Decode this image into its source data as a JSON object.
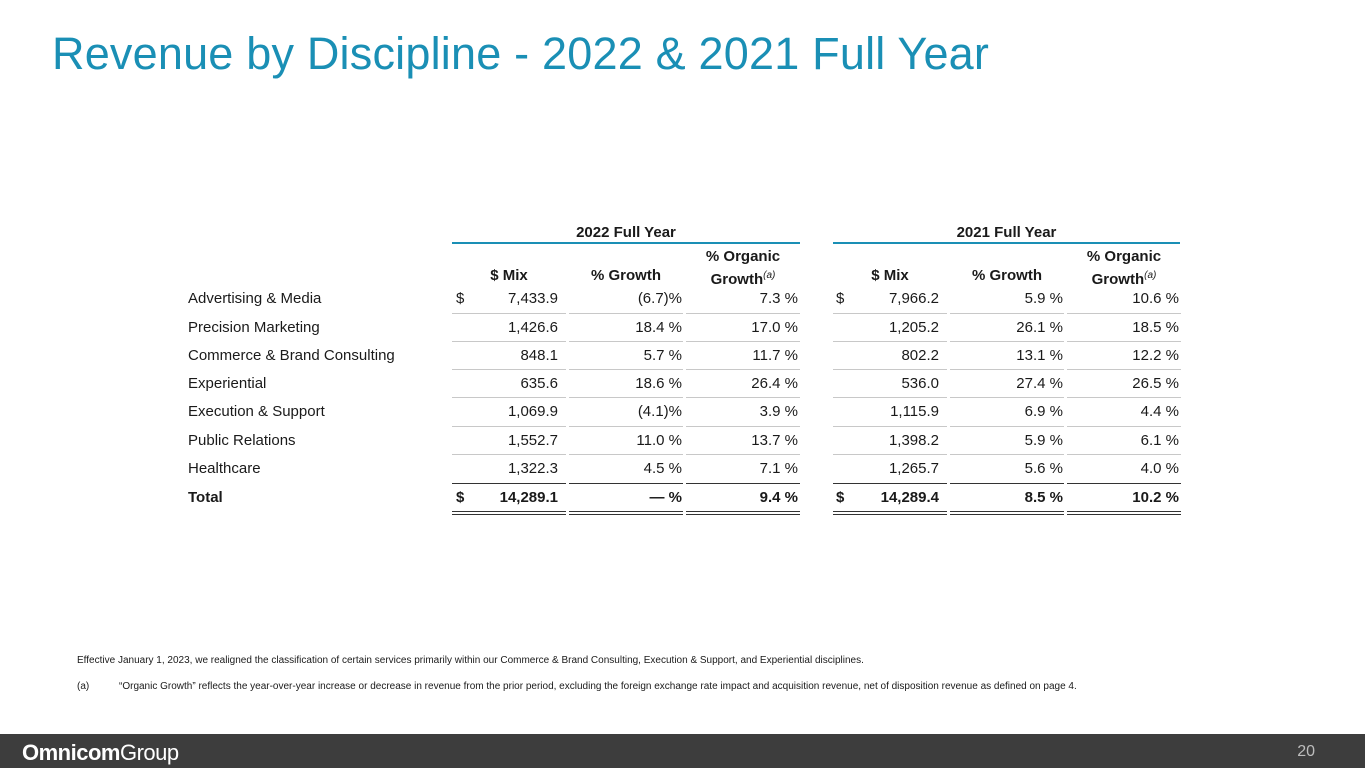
{
  "title": "Revenue by Discipline - 2022 & 2021 Full Year",
  "groups": {
    "y2022": "2022 Full Year",
    "y2021": "2021 Full Year"
  },
  "columns": {
    "mix": "$ Mix",
    "growth": "% Growth",
    "organic_line1": "% Organic",
    "organic_line2": "Growth",
    "organic_note": "(a)"
  },
  "rows": [
    {
      "label": "Advertising & Media",
      "d22": "$",
      "mix22": "7,433.9",
      "growth22": "(6.7)%",
      "org22": "7.3 %",
      "d21": "$",
      "mix21": "7,966.2",
      "growth21": "5.9 %",
      "org21": "10.6 %"
    },
    {
      "label": "Precision Marketing",
      "d22": "",
      "mix22": "1,426.6",
      "growth22": "18.4 %",
      "org22": "17.0 %",
      "d21": "",
      "mix21": "1,205.2",
      "growth21": "26.1 %",
      "org21": "18.5 %"
    },
    {
      "label": "Commerce & Brand Consulting",
      "d22": "",
      "mix22": "848.1",
      "growth22": "5.7 %",
      "org22": "11.7 %",
      "d21": "",
      "mix21": "802.2",
      "growth21": "13.1 %",
      "org21": "12.2 %"
    },
    {
      "label": "Experiential",
      "d22": "",
      "mix22": "635.6",
      "growth22": "18.6 %",
      "org22": "26.4 %",
      "d21": "",
      "mix21": "536.0",
      "growth21": "27.4 %",
      "org21": "26.5 %"
    },
    {
      "label": "Execution & Support",
      "d22": "",
      "mix22": "1,069.9",
      "growth22": "(4.1)%",
      "org22": "3.9 %",
      "d21": "",
      "mix21": "1,115.9",
      "growth21": "6.9 %",
      "org21": "4.4 %"
    },
    {
      "label": "Public Relations",
      "d22": "",
      "mix22": "1,552.7",
      "growth22": "11.0 %",
      "org22": "13.7 %",
      "d21": "",
      "mix21": "1,398.2",
      "growth21": "5.9 %",
      "org21": "6.1 %"
    },
    {
      "label": "Healthcare",
      "d22": "",
      "mix22": "1,322.3",
      "growth22": "4.5 %",
      "org22": "7.1 %",
      "d21": "",
      "mix21": "1,265.7",
      "growth21": "5.6 %",
      "org21": "4.0 %"
    },
    {
      "label": "Total",
      "d22": "$",
      "mix22": "14,289.1",
      "growth22": "— %",
      "org22": "9.4 %",
      "d21": "$",
      "mix21": "14,289.4",
      "growth21": "8.5 %",
      "org21": "10.2 %"
    }
  ],
  "notes": {
    "realignment": "Effective January 1, 2023, we realigned the classification of certain services primarily within our Commerce & Brand Consulting, Execution & Support, and Experiential disciplines.",
    "a_mark": "(a)",
    "a_text": "“Organic Growth” reflects the year-over-year increase or decrease in revenue from the prior period, excluding the foreign exchange rate impact and acquisition revenue, net of disposition revenue as defined on page 4."
  },
  "footer": {
    "logo_bold": "Omnicom",
    "logo_light": "Group",
    "page_number": "20"
  },
  "colors": {
    "accent": "#1a8fb5",
    "footer_bg": "#3d3d3d"
  }
}
